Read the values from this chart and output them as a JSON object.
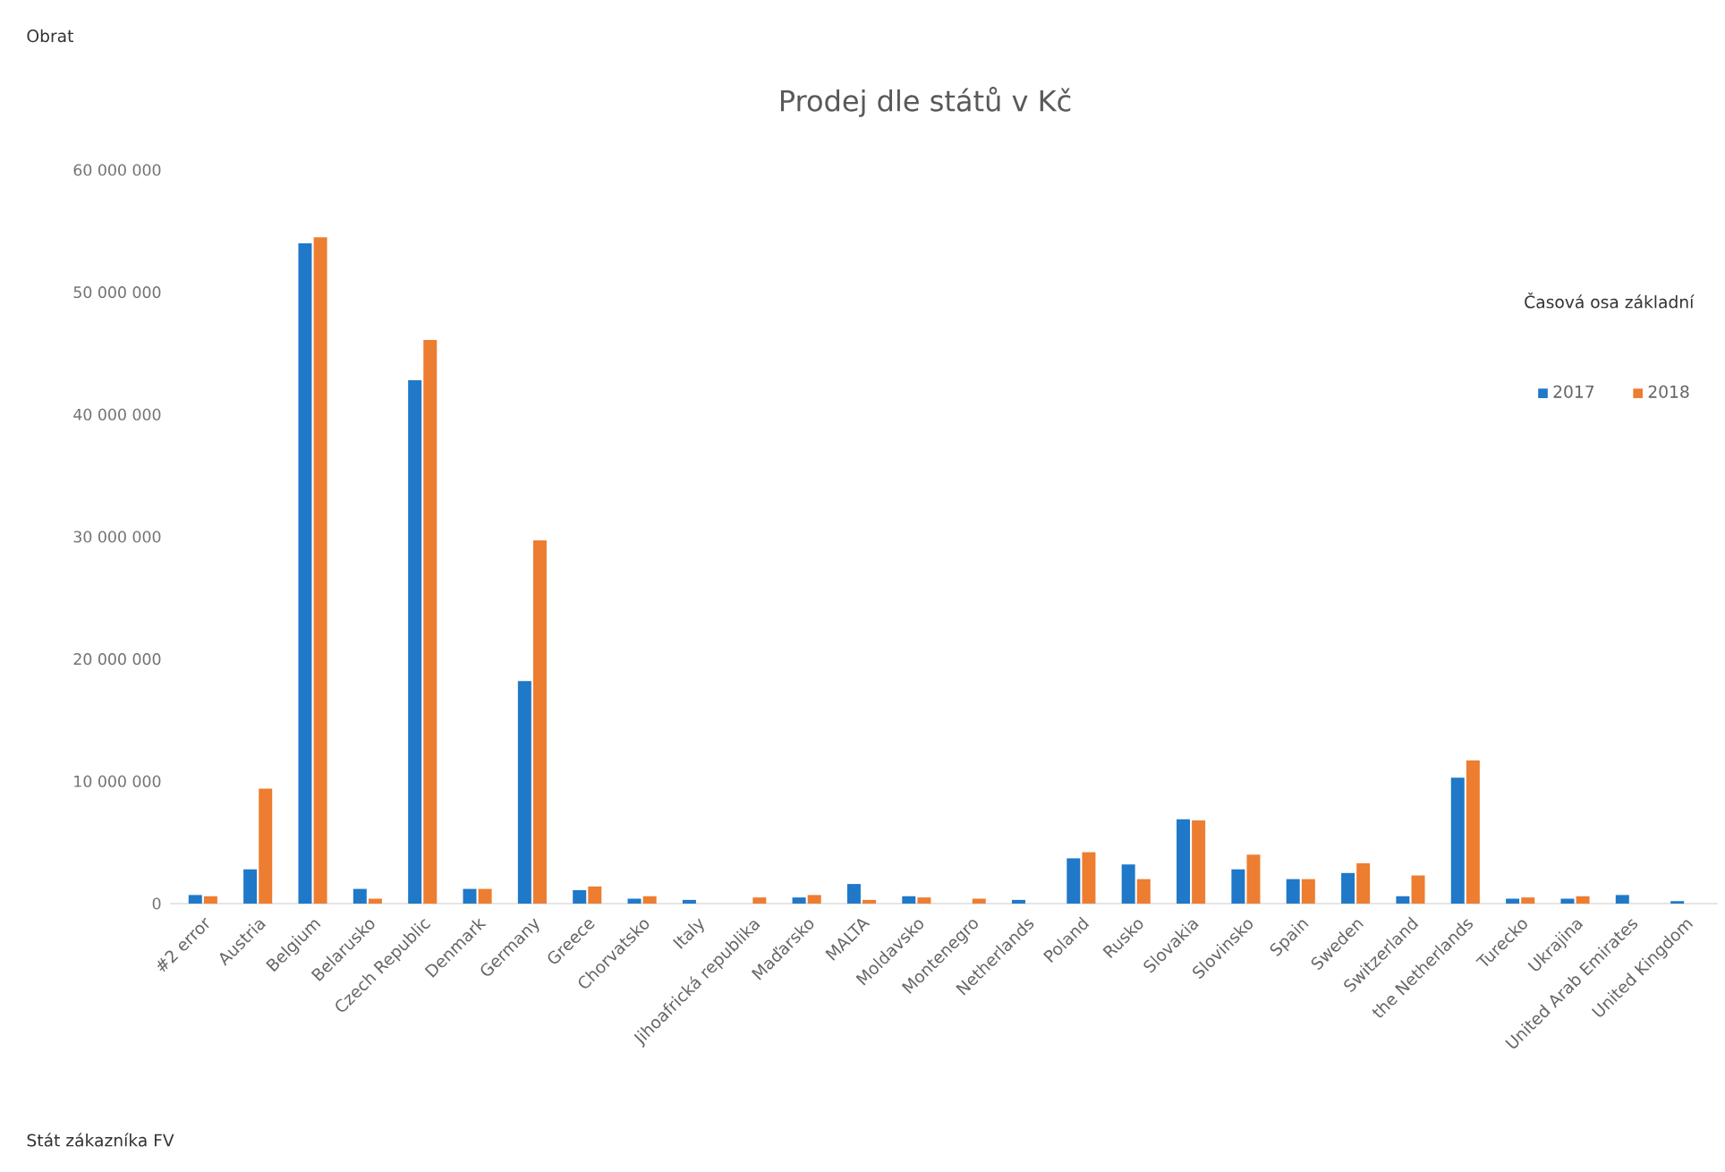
{
  "chart_data": {
    "type": "bar",
    "title": "Prodej dle států v Kč",
    "categories": [
      "#2 error",
      "Austria",
      "Belgium",
      "Belarusko",
      "Czech Republic",
      "Denmark",
      "Germany",
      "Greece",
      "Chorvatsko",
      "Italy",
      "Jihoafrická republika",
      "Maďarsko",
      "MALTA",
      "Moldavsko",
      "Montenegro",
      "Netherlands",
      "Poland",
      "Rusko",
      "Slovakia",
      "Slovinsko",
      "Spain",
      "Sweden",
      "Switzerland",
      "the Netherlands",
      "Turecko",
      "Ukrajina",
      "United Arab Emirates",
      "United Kingdom"
    ],
    "series": [
      {
        "name": "2017",
        "color": "#1f78c8",
        "values": [
          700000,
          2800000,
          54000000,
          1200000,
          42800000,
          1200000,
          18200000,
          1100000,
          400000,
          300000,
          null,
          500000,
          1600000,
          600000,
          null,
          300000,
          3700000,
          3200000,
          6900000,
          2800000,
          2000000,
          2500000,
          600000,
          10300000,
          400000,
          400000,
          700000,
          200000
        ]
      },
      {
        "name": "2018",
        "color": "#ed7d31",
        "values": [
          600000,
          9400000,
          54500000,
          400000,
          46100000,
          1200000,
          29700000,
          1400000,
          600000,
          null,
          500000,
          700000,
          300000,
          500000,
          400000,
          null,
          4200000,
          2000000,
          6800000,
          4000000,
          2000000,
          3300000,
          2300000,
          11700000,
          500000,
          600000,
          null,
          null
        ]
      }
    ],
    "ylim": [
      0,
      60000000
    ],
    "yticks": [
      {
        "value": 0,
        "label": "0"
      },
      {
        "value": 10000000,
        "label": "10 000 000"
      },
      {
        "value": 20000000,
        "label": "20 000 000"
      },
      {
        "value": 30000000,
        "label": "30 000 000"
      },
      {
        "value": 40000000,
        "label": "40 000 000"
      },
      {
        "value": 50000000,
        "label": "50 000 000"
      },
      {
        "value": 60000000,
        "label": "60 000 000"
      }
    ],
    "legend": "right",
    "legend_title": "Časová osa základní",
    "annotations": [
      "Obrat",
      "Stát zákazníka FV"
    ]
  }
}
